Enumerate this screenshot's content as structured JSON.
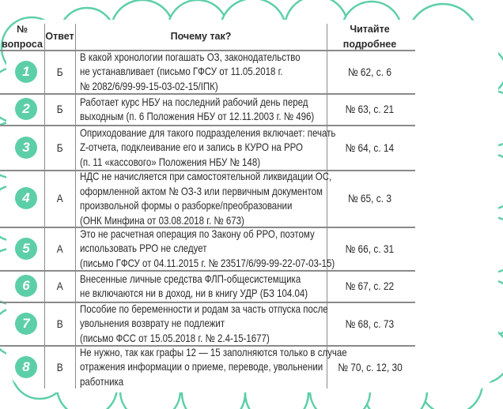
{
  "colors": {
    "accent": "#5dcfa8",
    "lines": "#8a8a8a"
  },
  "header": {
    "num": "№ вопроса",
    "answer": "Ответ",
    "why": "Почему так?",
    "read": "Читайте подробнее"
  },
  "rows": [
    {
      "num": "1",
      "answer": "Б",
      "why": [
        "В какой хронологии погашать ОЗ, законодательство",
        "не устанавливает (письмо ГФСУ от 11.05.2018 г.",
        "№ 2082/6/99-99-15-03-02-15/ІПК)"
      ],
      "read": "№ 62, с. 6"
    },
    {
      "num": "2",
      "answer": "Б",
      "why": [
        "Работает курс НБУ на последний рабочий день перед",
        "выходным (п. 6 Положения НБУ от 12.11.2003 г. № 496)"
      ],
      "read": "№ 63, с. 21"
    },
    {
      "num": "3",
      "answer": "Б",
      "why": [
        "Оприходование для такого подразделения включает: печать",
        "Z-отчета, подклеивание его и запись в КУРО на РРО",
        "(п. 11 «кассового» Положения НБУ № 148)"
      ],
      "read": "№ 64, с. 14"
    },
    {
      "num": "4",
      "answer": "А",
      "why": [
        "НДС не начисляется при самостоятельной ликвидации ОС,",
        "оформленной актом № ОЗ-3 или первичным документом",
        "произвольной формы о разборке/преобразовании",
        "(ОНК Минфина от 03.08.2018 г. № 673)"
      ],
      "read": "№ 65, с. 3"
    },
    {
      "num": "5",
      "answer": "А",
      "why": [
        "Это не расчетная операция по Закону об РРО, поэтому",
        "использовать РРО не следует",
        "(письмо ГФСУ от 04.11.2015 г. № 23517/6/99-99-22-07-03-15)"
      ],
      "read": "№ 66, с. 31"
    },
    {
      "num": "6",
      "answer": "А",
      "why": [
        "Внесенные личные средства ФЛП-общесистемщика",
        "не включаются ни в доход, ни в книгу УДР (БЗ 104.04)"
      ],
      "read": "№ 67, с. 22"
    },
    {
      "num": "7",
      "answer": "В",
      "why": [
        "Пособие по беременности и родам за часть отпуска после",
        "увольнения возврату не подлежит",
        "(письмо ФСС от 15.05.2018 г. № 2.4-15-1677)"
      ],
      "read": "№ 68, с. 73"
    },
    {
      "num": "8",
      "answer": "В",
      "why": [
        "Не нужно, так как графы 12 — 15 заполняются только в случае",
        "отражения информации о приеме, переводе, увольнении",
        "работника"
      ],
      "read": "№ 70, с. 12, 30"
    }
  ]
}
